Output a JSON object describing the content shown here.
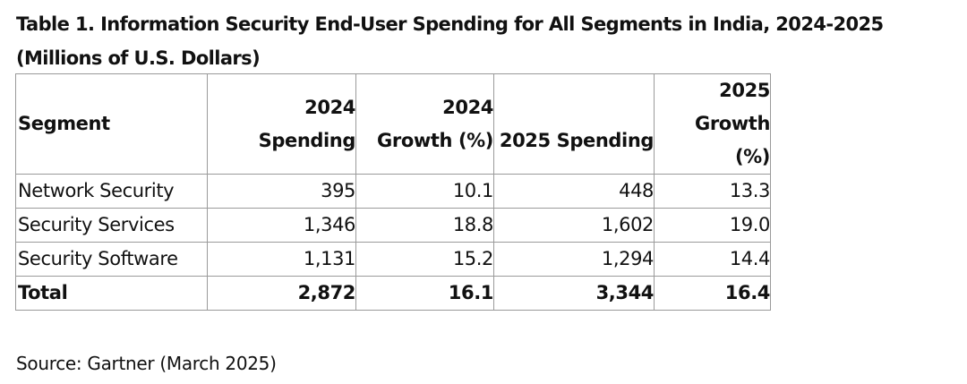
{
  "title": "Table 1. Information Security End-User Spending for All Segments in India, 2024-2025 (Millions of U.S. Dollars)",
  "table": {
    "headers": {
      "segment": "Segment",
      "spending_2024_line1": "2024",
      "spending_2024_line2": "Spending",
      "growth_2024_line1": "2024",
      "growth_2024_line2": "Growth (%)",
      "spending_2025": "2025 Spending",
      "growth_2025_line1": "2025",
      "growth_2025_line2": "Growth (%)"
    },
    "rows": [
      {
        "segment": "Network Security",
        "spending_2024": "395",
        "growth_2024": "10.1",
        "spending_2025": "448",
        "growth_2025": "13.3"
      },
      {
        "segment": "Security Services",
        "spending_2024": "1,346",
        "growth_2024": "18.8",
        "spending_2025": "1,602",
        "growth_2025": "19.0"
      },
      {
        "segment": "Security Software",
        "spending_2024": "1,131",
        "growth_2024": "15.2",
        "spending_2025": "1,294",
        "growth_2025": "14.4"
      }
    ],
    "total": {
      "segment": "Total",
      "spending_2024": "2,872",
      "growth_2024": "16.1",
      "spending_2025": "3,344",
      "growth_2025": "16.4"
    }
  },
  "source": "Source: Gartner (March 2025)"
}
